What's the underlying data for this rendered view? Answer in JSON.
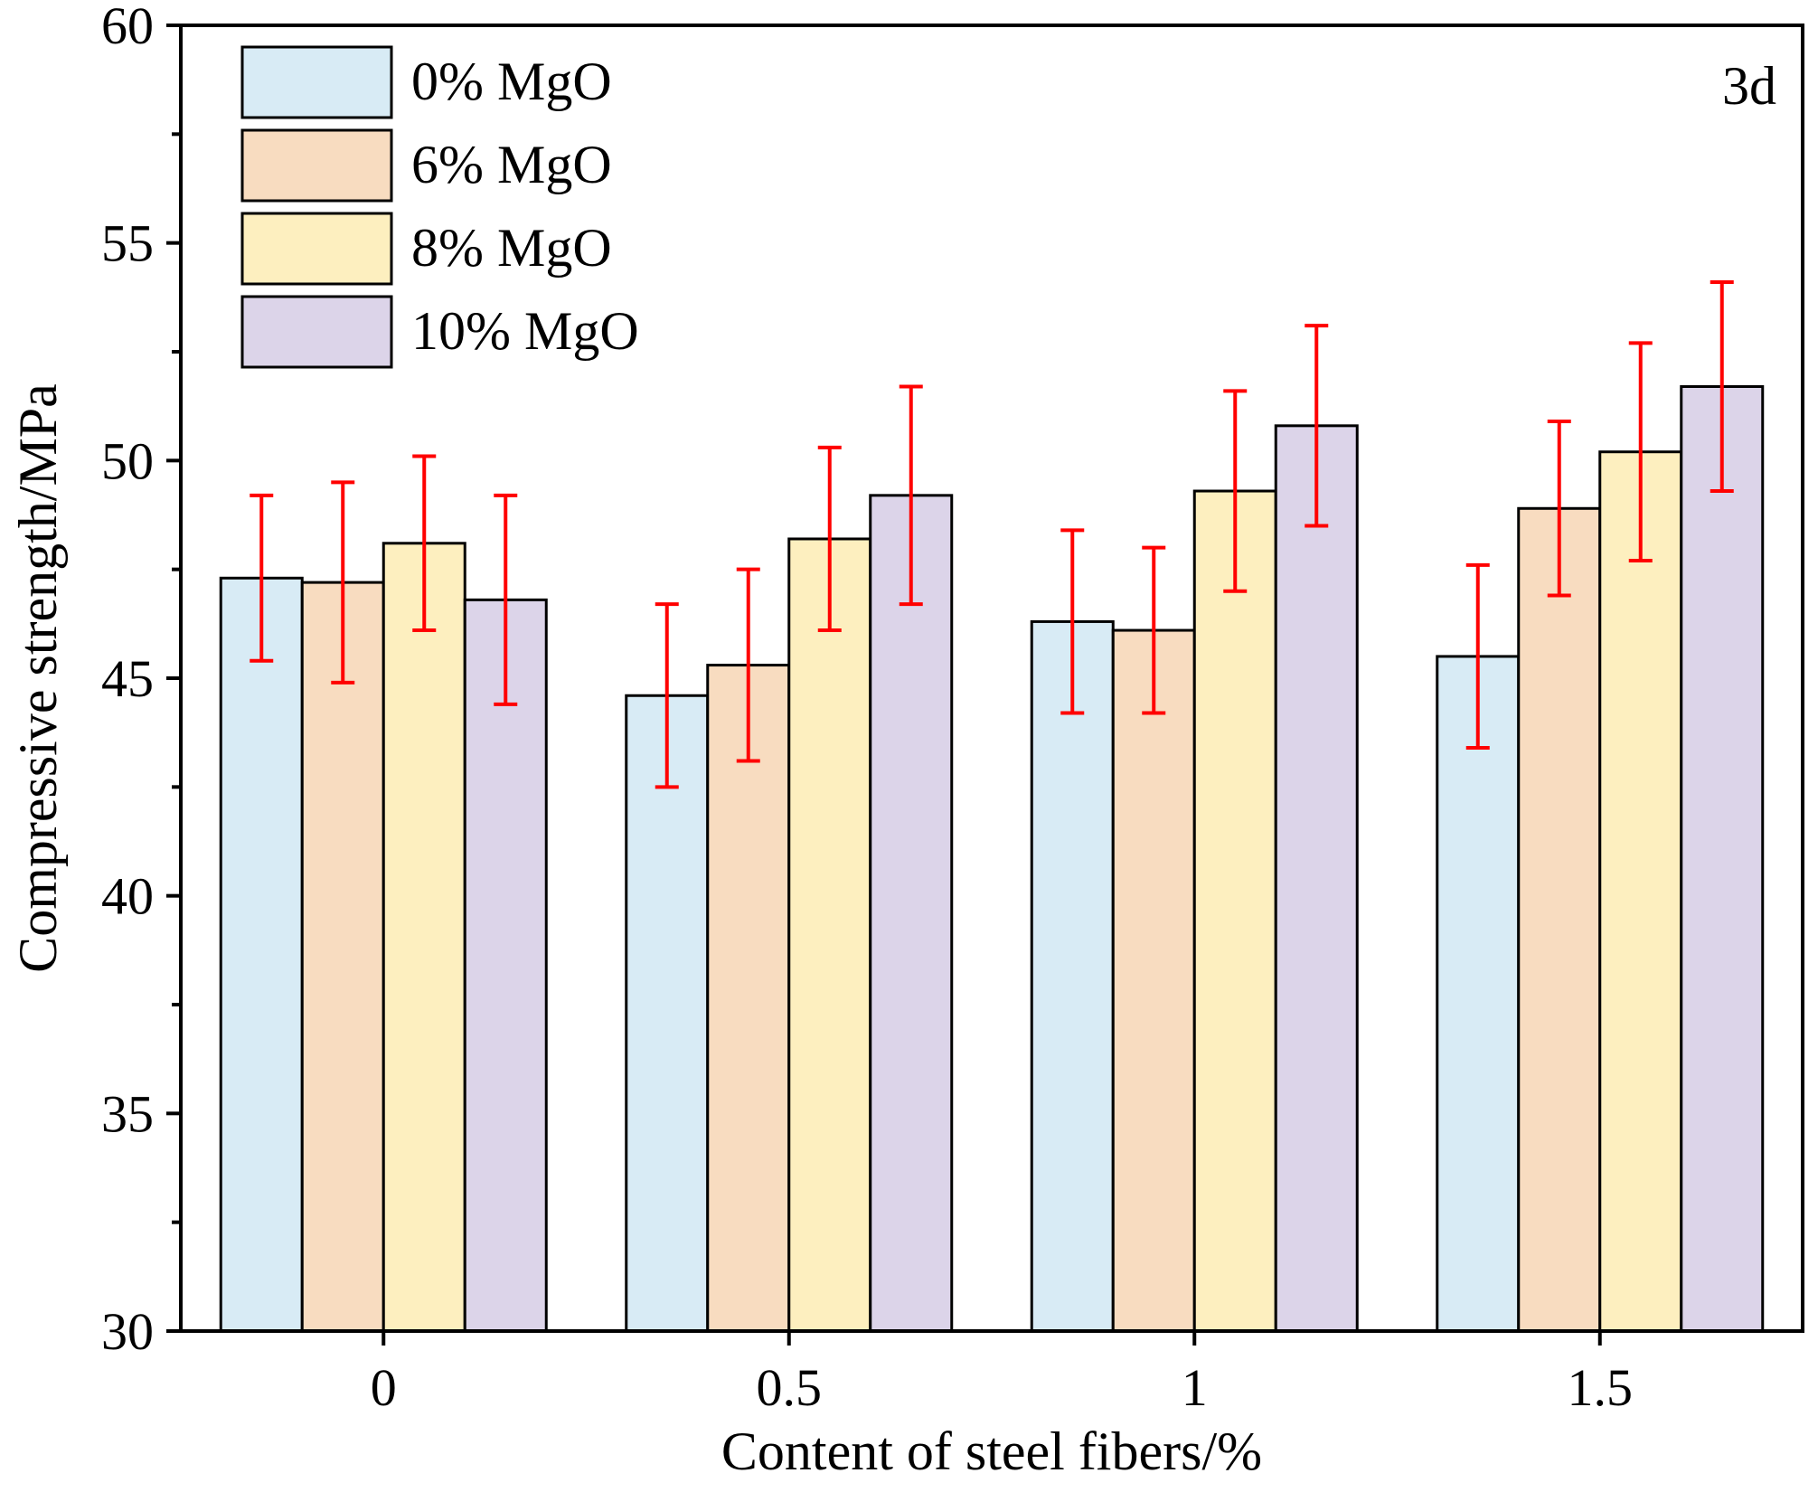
{
  "chart_data": {
    "type": "bar",
    "categories": [
      "0",
      "0.5",
      "1",
      "1.5"
    ],
    "xlabel": "Content of steel fibers/%",
    "ylabel": "Compressive strength/MPa",
    "annotation": "3d",
    "ylim": [
      30,
      60
    ],
    "yticks": [
      30,
      35,
      40,
      45,
      50,
      55,
      60
    ],
    "legend_position": "top-left",
    "error_bar_color": "#ff0000",
    "series": [
      {
        "name": "0% MgO",
        "color": "#d8ebf5",
        "values": [
          47.3,
          44.6,
          46.3,
          45.5
        ],
        "errors": [
          1.9,
          2.1,
          2.1,
          2.1
        ]
      },
      {
        "name": "6% MgO",
        "color": "#f8dcc0",
        "values": [
          47.2,
          45.3,
          46.1,
          48.9
        ],
        "errors": [
          2.3,
          2.2,
          1.9,
          2.0
        ]
      },
      {
        "name": "8% MgO",
        "color": "#fdefbf",
        "values": [
          48.1,
          48.2,
          49.3,
          50.2
        ],
        "errors": [
          2.0,
          2.1,
          2.3,
          2.5
        ]
      },
      {
        "name": "10% MgO",
        "color": "#dcd4e9",
        "values": [
          46.8,
          49.2,
          50.8,
          51.7
        ],
        "errors": [
          2.4,
          2.5,
          2.3,
          2.4
        ]
      }
    ]
  }
}
